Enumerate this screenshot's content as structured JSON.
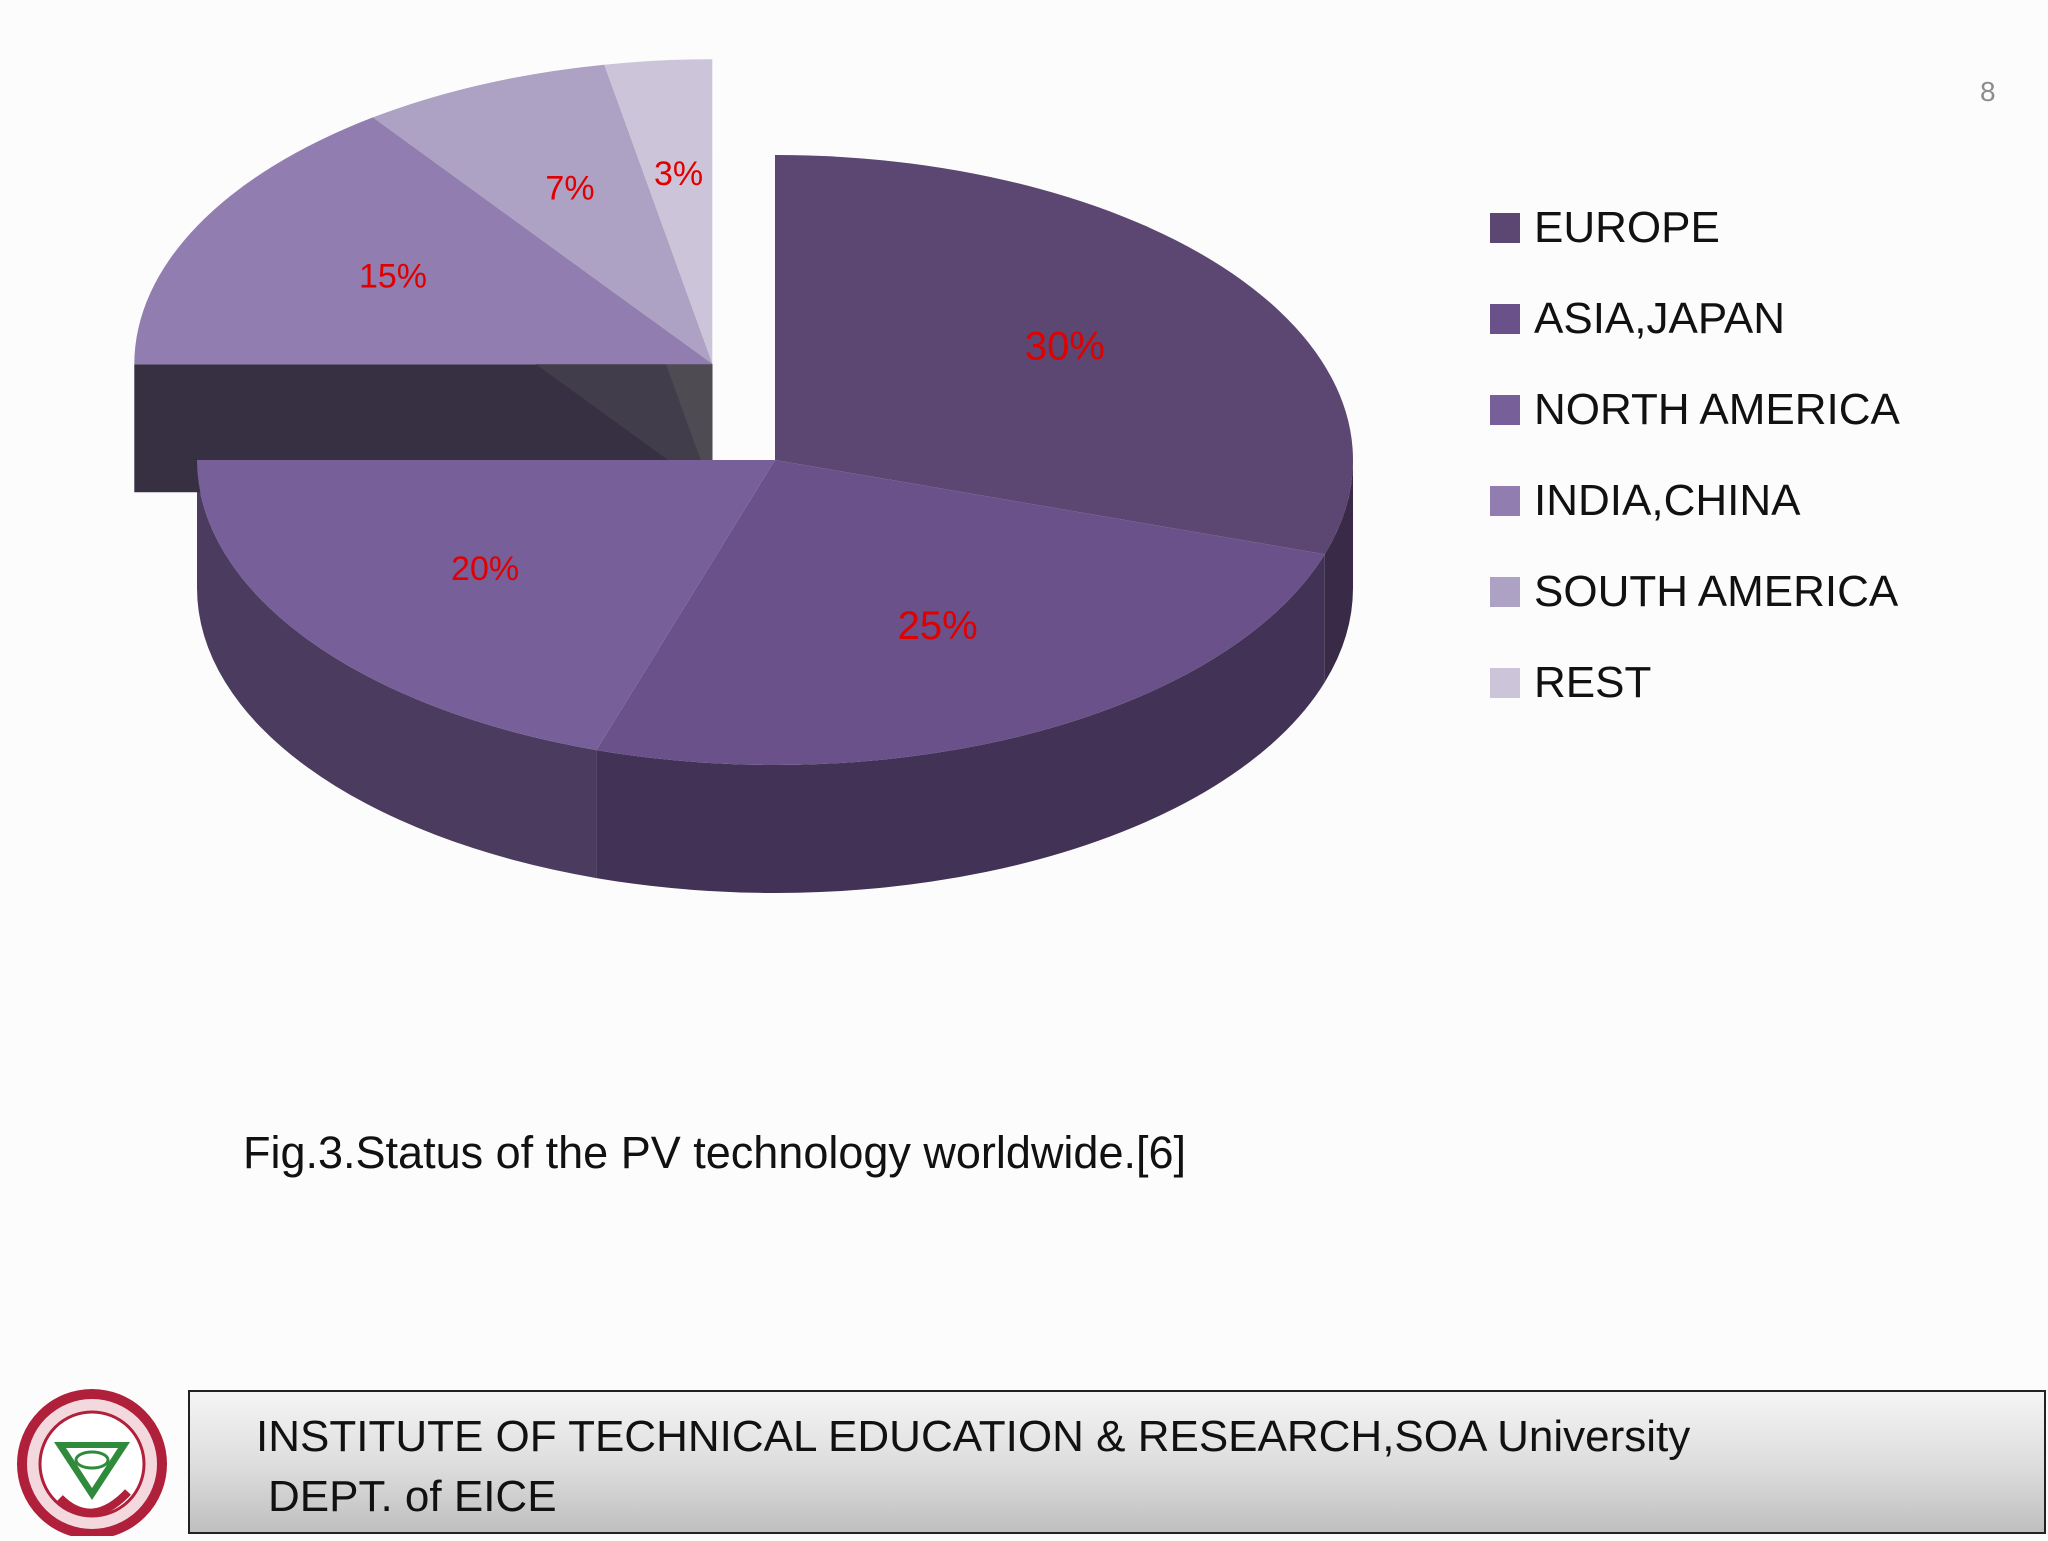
{
  "slide": {
    "number": "8",
    "caption": "Fig.3.Status of the PV technology worldwide.[6]"
  },
  "footer": {
    "line1": "INSTITUTE OF TECHNICAL EDUCATION & RESEARCH,SOA University",
    "line2": "DEPT. of EICE"
  },
  "colors": {
    "label_text": "#e00000",
    "footer_border": "#222222"
  },
  "chart_data": {
    "type": "pie",
    "style": "3d-exploded",
    "legend_position": "right",
    "slices": [
      {
        "name": "EUROPE",
        "value": 30,
        "label": "30%",
        "color": "#5c4672",
        "exploded": false
      },
      {
        "name": "ASIA,JAPAN",
        "value": 25,
        "label": "25%",
        "color": "#6a5189",
        "exploded": false
      },
      {
        "name": "NORTH AMERICA",
        "value": 20,
        "label": "20%",
        "color": "#775f99",
        "exploded": false
      },
      {
        "name": "INDIA,CHINA",
        "value": 15,
        "label": "15%",
        "color": "#917daf",
        "exploded": true
      },
      {
        "name": "SOUTH AMERICA",
        "value": 7,
        "label": "7%",
        "color": "#ada1c4",
        "exploded": true
      },
      {
        "name": "REST",
        "value": 3,
        "label": "3%",
        "color": "#ccc5d9",
        "exploded": true
      }
    ]
  }
}
